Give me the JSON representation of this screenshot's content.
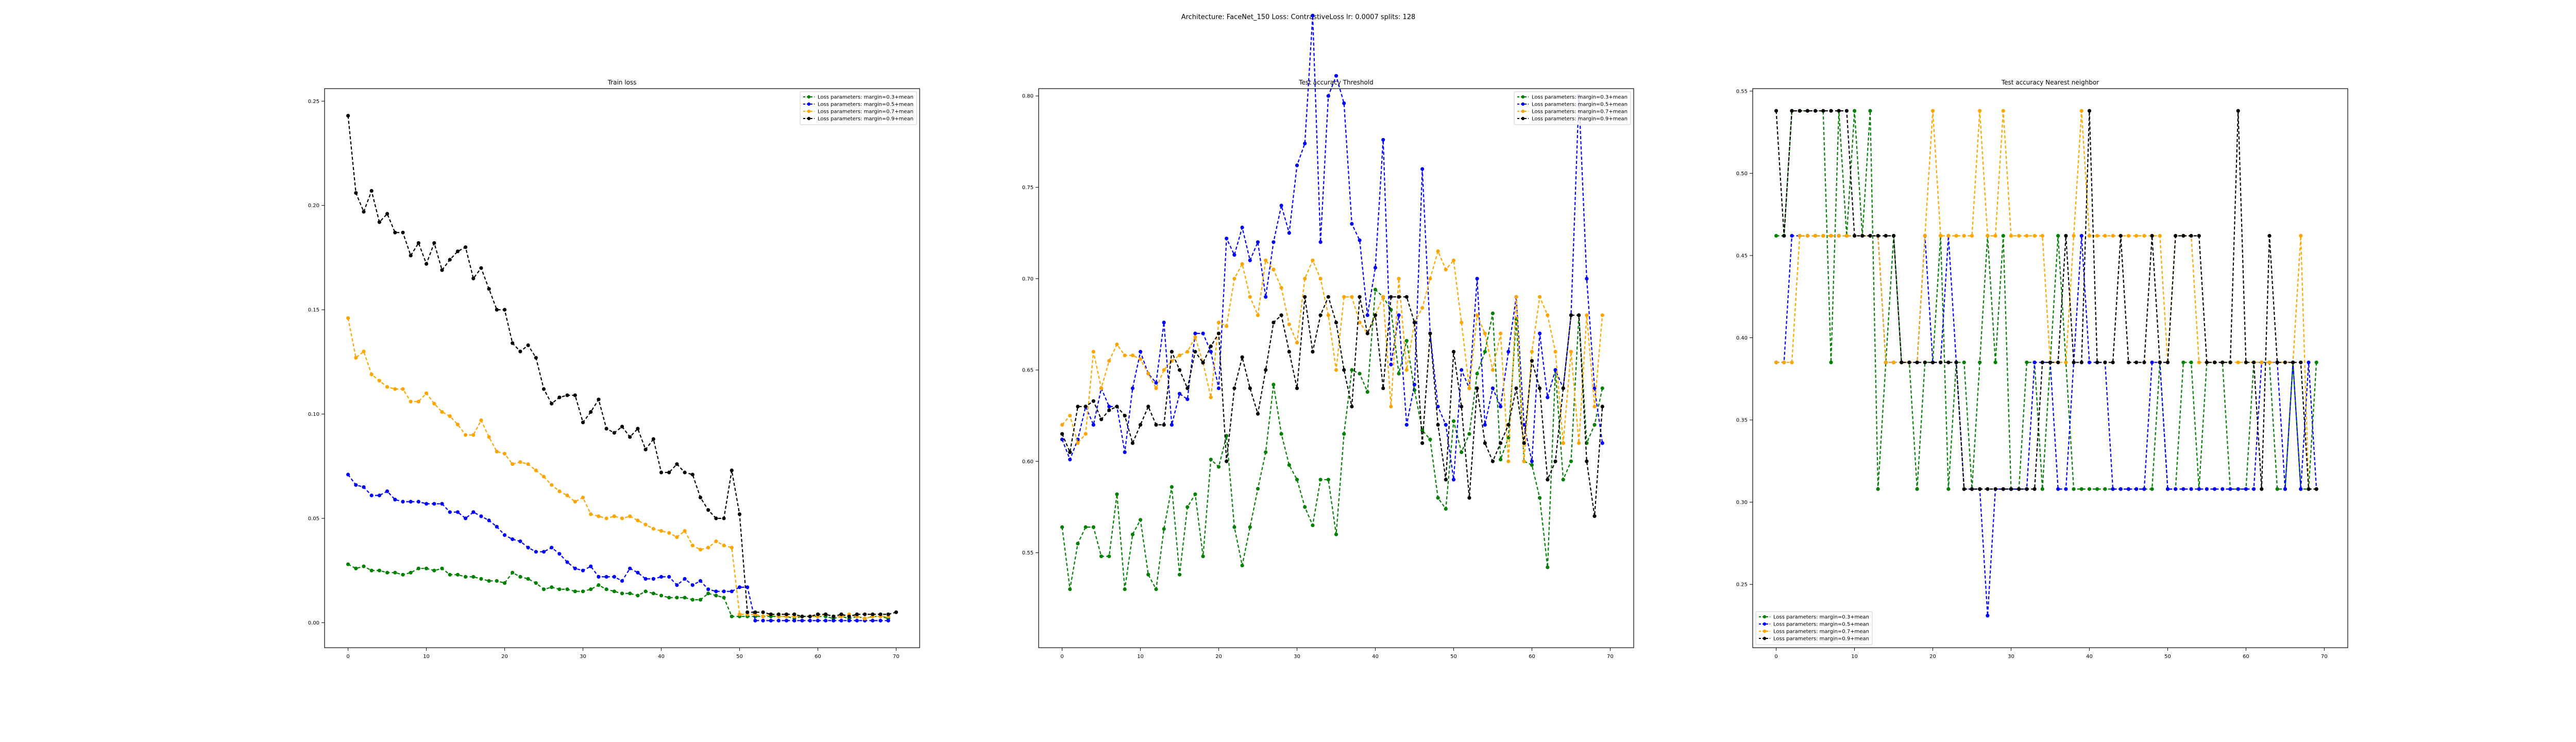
{
  "figure": {
    "suptitle": "Architecture: FaceNet_150 Loss: ContrastiveLoss lr: 0.0007 splits: 128"
  },
  "colors": {
    "series": [
      "green",
      "blue",
      "orange",
      "black"
    ]
  },
  "chart_data": [
    {
      "type": "line",
      "title": "Train loss",
      "xlabel": "",
      "ylabel": "",
      "xlim": [
        -3,
        73
      ],
      "ylim": [
        -0.012,
        0.256
      ],
      "xticks": [
        0,
        10,
        20,
        30,
        40,
        50,
        60,
        70
      ],
      "yticks": [
        0.0,
        0.05,
        0.1,
        0.15,
        0.2,
        0.25
      ],
      "ytick_labels": [
        "0.00",
        "0.05",
        "0.10",
        "0.15",
        "0.20",
        "0.25"
      ],
      "legend": "upper-right",
      "grid": false,
      "x_start": 0,
      "series": [
        {
          "name": "Loss parameters: margin=0.3+mean",
          "color": "green",
          "values": [
            0.028,
            0.026,
            0.027,
            0.025,
            0.025,
            0.024,
            0.024,
            0.023,
            0.024,
            0.026,
            0.026,
            0.025,
            0.026,
            0.023,
            0.023,
            0.022,
            0.022,
            0.021,
            0.02,
            0.02,
            0.019,
            0.024,
            0.022,
            0.021,
            0.019,
            0.016,
            0.017,
            0.016,
            0.016,
            0.015,
            0.015,
            0.016,
            0.018,
            0.016,
            0.015,
            0.014,
            0.014,
            0.013,
            0.015,
            0.014,
            0.013,
            0.012,
            0.012,
            0.012,
            0.011,
            0.011,
            0.014,
            0.013,
            0.012,
            0.003,
            0.003,
            0.003,
            0.003,
            0.003,
            0.003,
            0.003,
            0.003,
            0.002,
            0.003,
            0.003,
            0.003,
            0.003,
            0.002,
            0.003,
            0.002,
            0.003,
            0.002,
            0.003,
            0.003,
            0.002
          ]
        },
        {
          "name": "Loss parameters: margin=0.5+mean",
          "color": "blue",
          "values": [
            0.071,
            0.066,
            0.065,
            0.061,
            0.061,
            0.063,
            0.059,
            0.058,
            0.058,
            0.058,
            0.057,
            0.057,
            0.057,
            0.053,
            0.053,
            0.05,
            0.053,
            0.051,
            0.049,
            0.046,
            0.042,
            0.04,
            0.039,
            0.036,
            0.034,
            0.034,
            0.036,
            0.033,
            0.029,
            0.026,
            0.025,
            0.027,
            0.022,
            0.022,
            0.022,
            0.02,
            0.026,
            0.024,
            0.021,
            0.021,
            0.022,
            0.022,
            0.018,
            0.021,
            0.018,
            0.02,
            0.016,
            0.015,
            0.015,
            0.015,
            0.017,
            0.017,
            0.001,
            0.001,
            0.001,
            0.001,
            0.001,
            0.001,
            0.001,
            0.001,
            0.001,
            0.001,
            0.001,
            0.001,
            0.001,
            0.001,
            0.001,
            0.001,
            0.001,
            0.001
          ]
        },
        {
          "name": "Loss parameters: margin=0.7+mean",
          "color": "orange",
          "values": [
            0.146,
            0.127,
            0.13,
            0.119,
            0.116,
            0.113,
            0.112,
            0.112,
            0.106,
            0.106,
            0.11,
            0.105,
            0.101,
            0.099,
            0.095,
            0.09,
            0.09,
            0.097,
            0.089,
            0.082,
            0.081,
            0.076,
            0.077,
            0.076,
            0.073,
            0.07,
            0.066,
            0.063,
            0.061,
            0.058,
            0.06,
            0.052,
            0.051,
            0.05,
            0.051,
            0.05,
            0.051,
            0.049,
            0.047,
            0.045,
            0.044,
            0.043,
            0.041,
            0.044,
            0.037,
            0.035,
            0.036,
            0.039,
            0.037,
            0.036,
            0.004,
            0.004,
            0.004,
            0.003,
            0.004,
            0.003,
            0.003,
            0.003,
            0.003,
            0.003,
            0.003,
            0.004,
            0.003,
            0.003,
            0.004,
            0.003,
            0.002,
            0.003,
            0.003,
            0.003
          ]
        },
        {
          "name": "Loss parameters: margin=0.9+mean",
          "color": "black",
          "values": [
            0.243,
            0.206,
            0.197,
            0.207,
            0.192,
            0.196,
            0.187,
            0.187,
            0.176,
            0.182,
            0.172,
            0.182,
            0.169,
            0.174,
            0.178,
            0.18,
            0.165,
            0.17,
            0.16,
            0.15,
            0.15,
            0.134,
            0.13,
            0.133,
            0.127,
            0.112,
            0.105,
            0.108,
            0.109,
            0.109,
            0.096,
            0.101,
            0.107,
            0.093,
            0.091,
            0.094,
            0.089,
            0.093,
            0.083,
            0.088,
            0.072,
            0.072,
            0.076,
            0.072,
            0.071,
            0.06,
            0.054,
            0.05,
            0.05,
            0.073,
            0.052,
            0.005,
            0.005,
            0.005,
            0.004,
            0.004,
            0.004,
            0.004,
            0.003,
            0.003,
            0.004,
            0.004,
            0.003,
            0.004,
            0.003,
            0.004,
            0.004,
            0.004,
            0.004,
            0.004,
            0.005
          ]
        }
      ]
    },
    {
      "type": "line",
      "title": "Test accuracy Threshold",
      "xlabel": "",
      "ylabel": "",
      "xlim": [
        -3,
        73
      ],
      "ylim": [
        0.498,
        0.804
      ],
      "xticks": [
        0,
        10,
        20,
        30,
        40,
        50,
        60,
        70
      ],
      "yticks": [
        0.55,
        0.6,
        0.65,
        0.7,
        0.75,
        0.8
      ],
      "ytick_labels": [
        "0.55",
        "0.60",
        "0.65",
        "0.70",
        "0.75",
        "0.80"
      ],
      "legend": "upper-right",
      "grid": false,
      "x_start": 0,
      "series": [
        {
          "name": "Loss parameters: margin=0.3+mean",
          "color": "green",
          "values": [
            0.564,
            0.53,
            0.555,
            0.564,
            0.564,
            0.548,
            0.548,
            0.582,
            0.53,
            0.56,
            0.568,
            0.538,
            0.53,
            0.563,
            0.586,
            0.538,
            0.575,
            0.582,
            0.548,
            0.601,
            0.597,
            0.614,
            0.564,
            0.543,
            0.564,
            0.585,
            0.605,
            0.642,
            0.615,
            0.598,
            0.59,
            0.575,
            0.565,
            0.59,
            0.59,
            0.56,
            0.615,
            0.65,
            0.648,
            0.638,
            0.694,
            0.69,
            0.683,
            0.648,
            0.666,
            0.639,
            0.617,
            0.612,
            0.58,
            0.574,
            0.622,
            0.605,
            0.615,
            0.648,
            0.66,
            0.681,
            0.601,
            0.613,
            0.678,
            0.6,
            0.598,
            0.58,
            0.542,
            0.65,
            0.59,
            0.6,
            0.68,
            0.61,
            0.62,
            0.64
          ]
        },
        {
          "name": "Loss parameters: margin=0.5+mean",
          "color": "blue",
          "values": [
            0.612,
            0.601,
            0.612,
            0.63,
            0.62,
            0.64,
            0.63,
            0.63,
            0.605,
            0.64,
            0.66,
            0.648,
            0.643,
            0.676,
            0.62,
            0.637,
            0.634,
            0.67,
            0.67,
            0.66,
            0.64,
            0.722,
            0.713,
            0.728,
            0.71,
            0.72,
            0.69,
            0.72,
            0.74,
            0.725,
            0.762,
            0.774,
            0.844,
            0.72,
            0.8,
            0.811,
            0.796,
            0.73,
            0.721,
            0.68,
            0.706,
            0.776,
            0.653,
            0.68,
            0.62,
            0.642,
            0.76,
            0.67,
            0.63,
            0.62,
            0.59,
            0.65,
            0.64,
            0.7,
            0.62,
            0.64,
            0.63,
            0.66,
            0.69,
            0.62,
            0.6,
            0.67,
            0.635,
            0.65,
            0.64,
            0.68,
            0.8,
            0.7,
            0.64,
            0.61
          ]
        },
        {
          "name": "Loss parameters: margin=0.7+mean",
          "color": "orange",
          "values": [
            0.62,
            0.625,
            0.61,
            0.615,
            0.66,
            0.64,
            0.655,
            0.664,
            0.658,
            0.658,
            0.656,
            0.648,
            0.64,
            0.65,
            0.655,
            0.658,
            0.66,
            0.668,
            0.654,
            0.635,
            0.676,
            0.674,
            0.7,
            0.708,
            0.69,
            0.68,
            0.71,
            0.705,
            0.695,
            0.675,
            0.665,
            0.7,
            0.71,
            0.7,
            0.68,
            0.65,
            0.69,
            0.69,
            0.676,
            0.67,
            0.68,
            0.69,
            0.63,
            0.7,
            0.65,
            0.676,
            0.684,
            0.7,
            0.715,
            0.705,
            0.71,
            0.676,
            0.64,
            0.68,
            0.67,
            0.65,
            0.67,
            0.6,
            0.69,
            0.6,
            0.66,
            0.69,
            0.68,
            0.66,
            0.61,
            0.66,
            0.61,
            0.68,
            0.63,
            0.68
          ]
        },
        {
          "name": "Loss parameters: margin=0.9+mean",
          "color": "black",
          "values": [
            0.615,
            0.605,
            0.63,
            0.63,
            0.633,
            0.623,
            0.628,
            0.63,
            0.625,
            0.61,
            0.62,
            0.63,
            0.62,
            0.62,
            0.66,
            0.65,
            0.64,
            0.66,
            0.654,
            0.663,
            0.67,
            0.6,
            0.64,
            0.657,
            0.64,
            0.626,
            0.65,
            0.676,
            0.68,
            0.66,
            0.64,
            0.69,
            0.66,
            0.68,
            0.69,
            0.676,
            0.65,
            0.63,
            0.69,
            0.67,
            0.68,
            0.64,
            0.69,
            0.69,
            0.69,
            0.676,
            0.61,
            0.67,
            0.62,
            0.59,
            0.66,
            0.63,
            0.58,
            0.64,
            0.61,
            0.6,
            0.61,
            0.62,
            0.64,
            0.61,
            0.655,
            0.64,
            0.59,
            0.6,
            0.64,
            0.68,
            0.68,
            0.6,
            0.57,
            0.63
          ]
        }
      ]
    },
    {
      "type": "line",
      "title": "Test accuracy Nearest neighbor",
      "xlabel": "",
      "ylabel": "",
      "xlim": [
        -3,
        73
      ],
      "ylim": [
        0.2115,
        0.5515
      ],
      "xticks": [
        0,
        10,
        20,
        30,
        40,
        50,
        60,
        70
      ],
      "yticks": [
        0.25,
        0.3,
        0.35,
        0.4,
        0.45,
        0.5,
        0.55
      ],
      "ytick_labels": [
        "0.25",
        "0.30",
        "0.35",
        "0.40",
        "0.45",
        "0.50",
        "0.55"
      ],
      "legend": "lower-left",
      "grid": false,
      "x_start": 0,
      "series": [
        {
          "name": "Loss parameters: margin=0.3+mean",
          "color": "green",
          "values": [
            0.462,
            0.462,
            0.538,
            0.538,
            0.538,
            0.538,
            0.538,
            0.385,
            0.538,
            0.462,
            0.538,
            0.462,
            0.538,
            0.308,
            0.385,
            0.462,
            0.385,
            0.385,
            0.308,
            0.385,
            0.385,
            0.462,
            0.308,
            0.385,
            0.385,
            0.308,
            0.385,
            0.462,
            0.385,
            0.462,
            0.308,
            0.308,
            0.385,
            0.385,
            0.308,
            0.385,
            0.462,
            0.385,
            0.308,
            0.308,
            0.308,
            0.308,
            0.308,
            0.308,
            0.308,
            0.308,
            0.308,
            0.308,
            0.308,
            0.385,
            0.308,
            0.308,
            0.385,
            0.385,
            0.308,
            0.385,
            0.385,
            0.385,
            0.308,
            0.308,
            0.308,
            0.385,
            0.385,
            0.385,
            0.308,
            0.308,
            0.385,
            0.308,
            0.308,
            0.385
          ]
        },
        {
          "name": "Loss parameters: margin=0.5+mean",
          "color": "blue",
          "values": [
            0.385,
            0.385,
            0.462,
            0.462,
            0.462,
            0.462,
            0.462,
            0.462,
            0.462,
            0.462,
            0.462,
            0.462,
            0.462,
            0.462,
            0.385,
            0.385,
            0.385,
            0.385,
            0.385,
            0.462,
            0.385,
            0.385,
            0.462,
            0.385,
            0.308,
            0.308,
            0.308,
            0.231,
            0.308,
            0.308,
            0.308,
            0.308,
            0.308,
            0.385,
            0.385,
            0.385,
            0.308,
            0.308,
            0.385,
            0.462,
            0.385,
            0.385,
            0.385,
            0.308,
            0.308,
            0.308,
            0.308,
            0.308,
            0.385,
            0.385,
            0.308,
            0.308,
            0.308,
            0.308,
            0.308,
            0.308,
            0.308,
            0.308,
            0.308,
            0.308,
            0.308,
            0.308,
            0.385,
            0.385,
            0.385,
            0.308,
            0.385,
            0.308,
            0.385,
            0.308
          ]
        },
        {
          "name": "Loss parameters: margin=0.7+mean",
          "color": "orange",
          "values": [
            0.385,
            0.385,
            0.385,
            0.462,
            0.462,
            0.462,
            0.462,
            0.462,
            0.462,
            0.462,
            0.462,
            0.462,
            0.462,
            0.462,
            0.385,
            0.385,
            0.385,
            0.385,
            0.385,
            0.462,
            0.538,
            0.462,
            0.462,
            0.462,
            0.462,
            0.462,
            0.538,
            0.462,
            0.462,
            0.538,
            0.462,
            0.462,
            0.462,
            0.462,
            0.462,
            0.385,
            0.385,
            0.385,
            0.462,
            0.538,
            0.462,
            0.462,
            0.462,
            0.462,
            0.462,
            0.462,
            0.462,
            0.462,
            0.462,
            0.462,
            0.385,
            0.462,
            0.462,
            0.462,
            0.385,
            0.385,
            0.385,
            0.385,
            0.385,
            0.385,
            0.385,
            0.385,
            0.385,
            0.385,
            0.385,
            0.385,
            0.385,
            0.462,
            0.308,
            0.308
          ]
        },
        {
          "name": "Loss parameters: margin=0.9+mean",
          "color": "black",
          "values": [
            0.538,
            0.462,
            0.538,
            0.538,
            0.538,
            0.538,
            0.538,
            0.538,
            0.538,
            0.538,
            0.462,
            0.462,
            0.462,
            0.462,
            0.462,
            0.462,
            0.385,
            0.385,
            0.385,
            0.385,
            0.385,
            0.385,
            0.385,
            0.385,
            0.308,
            0.308,
            0.308,
            0.308,
            0.308,
            0.308,
            0.308,
            0.308,
            0.308,
            0.308,
            0.385,
            0.385,
            0.385,
            0.462,
            0.385,
            0.385,
            0.538,
            0.385,
            0.385,
            0.385,
            0.462,
            0.385,
            0.385,
            0.385,
            0.462,
            0.385,
            0.385,
            0.462,
            0.462,
            0.462,
            0.462,
            0.385,
            0.385,
            0.385,
            0.385,
            0.538,
            0.385,
            0.385,
            0.308,
            0.462,
            0.385,
            0.385,
            0.385,
            0.385,
            0.308,
            0.308
          ]
        }
      ]
    }
  ]
}
